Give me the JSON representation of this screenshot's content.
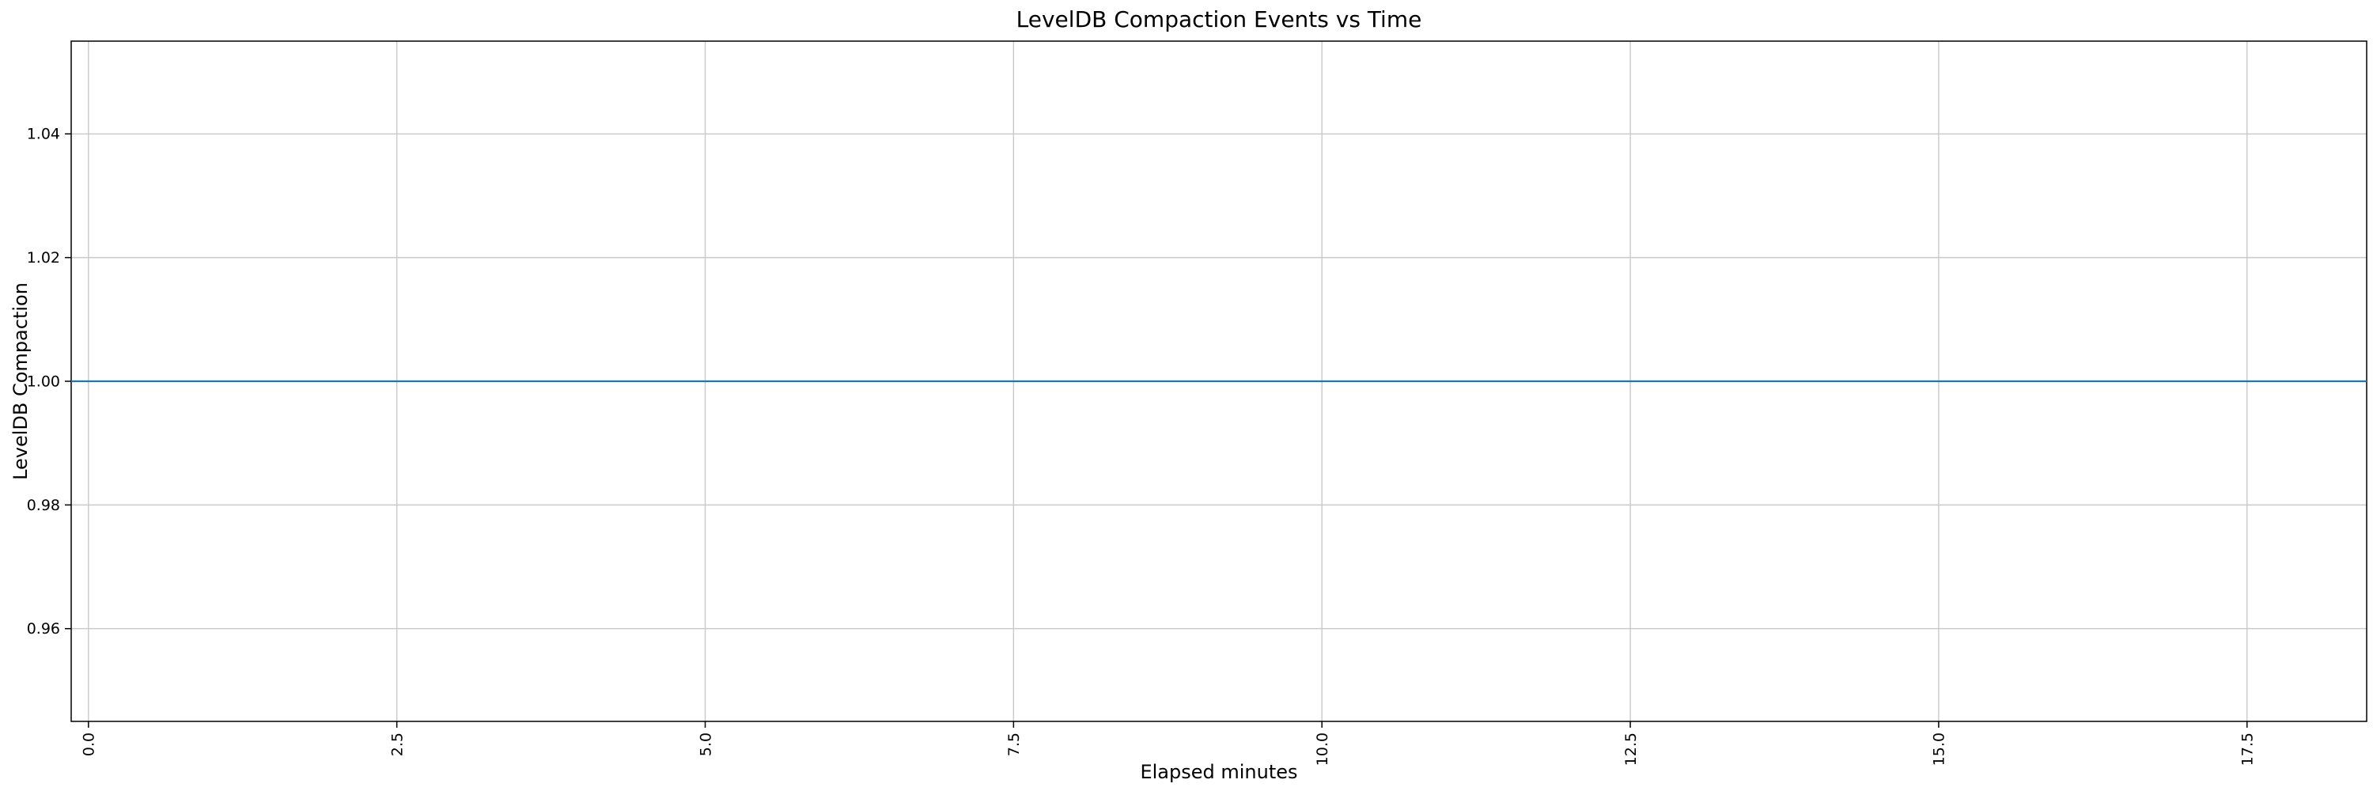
{
  "chart_data": {
    "type": "line",
    "title": "LevelDB Compaction Events vs Time",
    "xlabel": "Elapsed minutes",
    "ylabel": "LevelDB Compaction",
    "xlim": [
      -0.14,
      18.47
    ],
    "ylim": [
      0.945,
      1.055
    ],
    "grid": true,
    "legend_position": "none",
    "x_ticks": {
      "values": [
        0.0,
        2.5,
        5.0,
        7.5,
        10.0,
        12.5,
        15.0,
        17.5
      ],
      "labels": [
        "0.0",
        "2.5",
        "5.0",
        "7.5",
        "10.0",
        "12.5",
        "15.0",
        "17.5"
      ],
      "rotation": 90
    },
    "y_ticks": {
      "values": [
        0.96,
        0.98,
        1.0,
        1.02,
        1.04
      ],
      "labels": [
        "0.96",
        "0.98",
        "1.00",
        "1.02",
        "1.04"
      ]
    },
    "series": [
      {
        "name": "LevelDB Compaction",
        "constant_value": 1.0,
        "x_range_minutes": [
          0.0,
          18.4
        ],
        "spans_full_plot_width": true
      }
    ],
    "colors": {
      "line": "#1f77b4",
      "grid": "#c9c9c9",
      "spine": "#000000",
      "background": "#ffffff"
    }
  }
}
